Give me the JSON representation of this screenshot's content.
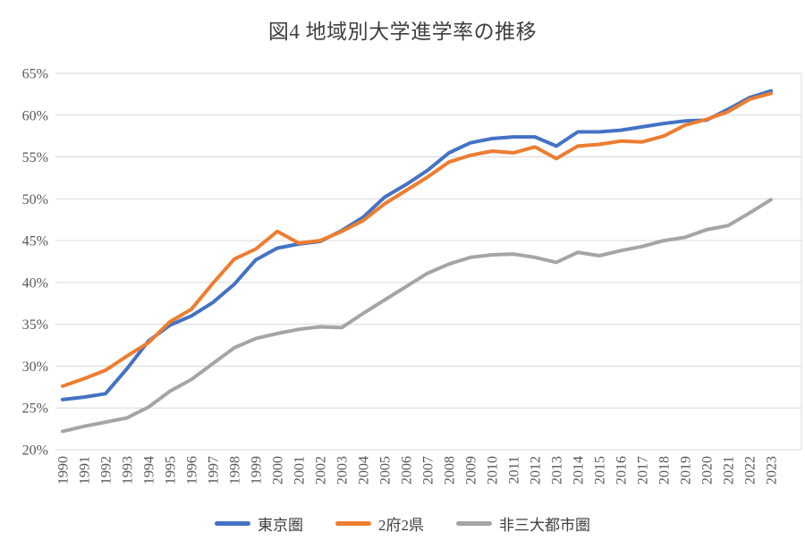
{
  "chart_data": {
    "type": "line",
    "title": "図4 地域別大学進学率の推移",
    "x": [
      1990,
      1991,
      1992,
      1993,
      1994,
      1995,
      1996,
      1997,
      1998,
      1999,
      2000,
      2001,
      2002,
      2003,
      2004,
      2005,
      2006,
      2007,
      2008,
      2009,
      2010,
      2011,
      2012,
      2013,
      2014,
      2015,
      2016,
      2017,
      2018,
      2019,
      2020,
      2021,
      2022,
      2023
    ],
    "series": [
      {
        "name": "東京圏",
        "color": "#4472C4",
        "values": [
          26.0,
          26.3,
          26.7,
          29.7,
          33.0,
          34.9,
          36.0,
          37.6,
          39.8,
          42.7,
          44.1,
          44.6,
          44.9,
          46.2,
          47.8,
          50.2,
          51.7,
          53.4,
          55.5,
          56.7,
          57.2,
          57.4,
          57.4,
          56.3,
          58.0,
          58.0,
          58.2,
          58.6,
          59.0,
          59.3,
          59.4,
          60.7,
          62.1,
          62.9
        ]
      },
      {
        "name": "2府2県",
        "color": "#ED7D31",
        "values": [
          27.6,
          28.5,
          29.5,
          31.2,
          32.8,
          35.3,
          36.8,
          39.9,
          42.8,
          44.0,
          46.1,
          44.7,
          45.0,
          46.1,
          47.4,
          49.4,
          51.0,
          52.6,
          54.4,
          55.2,
          55.7,
          55.5,
          56.2,
          54.8,
          56.3,
          56.5,
          56.9,
          56.8,
          57.5,
          58.8,
          59.5,
          60.4,
          61.9,
          62.6
        ]
      },
      {
        "name": "非三大都市圏",
        "color": "#A5A5A5",
        "values": [
          22.2,
          22.8,
          23.3,
          23.8,
          25.1,
          27.0,
          28.4,
          30.3,
          32.2,
          33.3,
          33.9,
          34.4,
          34.7,
          34.6,
          36.3,
          37.9,
          39.5,
          41.1,
          42.2,
          43.0,
          43.3,
          43.4,
          43.0,
          42.4,
          43.6,
          43.2,
          43.8,
          44.3,
          45.0,
          45.4,
          46.3,
          46.8,
          48.3,
          49.9
        ]
      }
    ],
    "ylim": [
      20,
      65
    ],
    "ytick_step": 5,
    "ytick_labels": [
      "20%",
      "25%",
      "30%",
      "35%",
      "40%",
      "45%",
      "50%",
      "55%",
      "60%",
      "65%"
    ],
    "grid": true,
    "legend_position": "bottom",
    "xlabel": "",
    "ylabel": ""
  },
  "style": {
    "gridline_color": "#D9D9D9",
    "axis_label_color": "#595959",
    "title_color": "#404040",
    "background": "#FFFFFF"
  }
}
